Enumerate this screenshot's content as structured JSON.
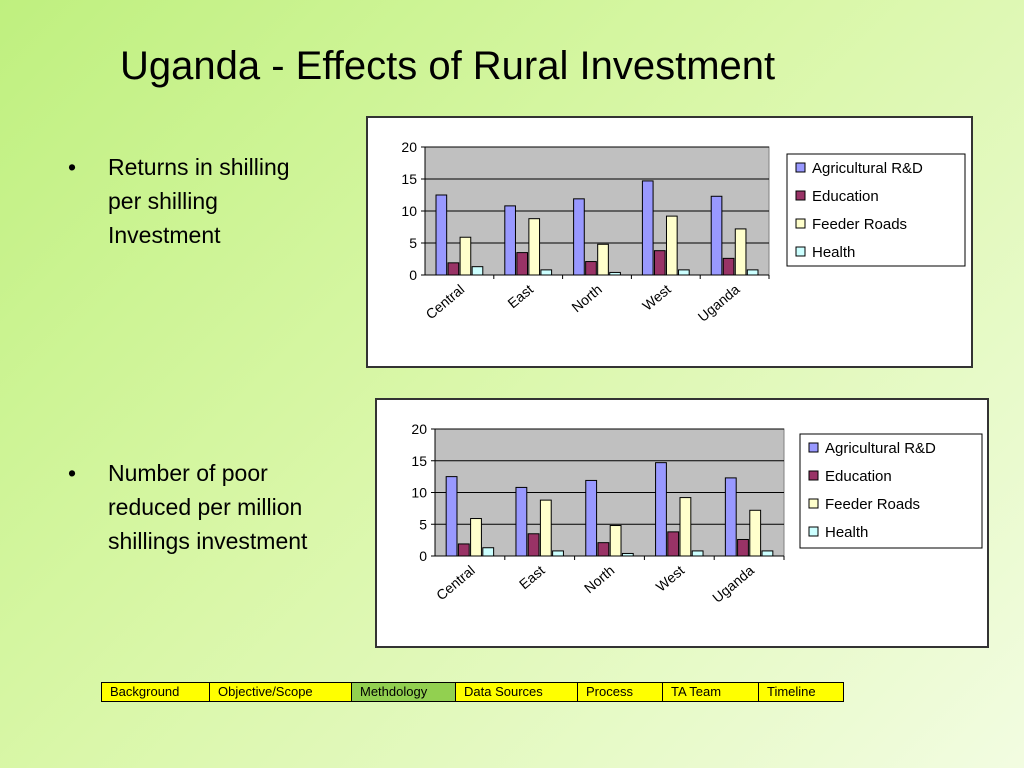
{
  "title": "Uganda - Effects of Rural Investment",
  "bullets": [
    {
      "marker": "•",
      "text": "Returns in shilling per shilling Investment"
    },
    {
      "marker": "•",
      "text": "Number of poor reduced per million shillings investment"
    }
  ],
  "chart_data": [
    {
      "type": "bar",
      "categories": [
        "Central",
        "East",
        "North",
        "West",
        "Uganda"
      ],
      "series": [
        {
          "name": "Agricultural R&D",
          "values": [
            12.5,
            10.8,
            11.9,
            14.7,
            12.3
          ]
        },
        {
          "name": "Education",
          "values": [
            1.9,
            3.5,
            2.1,
            3.8,
            2.6
          ]
        },
        {
          "name": "Feeder Roads",
          "values": [
            5.9,
            8.8,
            4.8,
            9.2,
            7.2
          ]
        },
        {
          "name": "Health",
          "values": [
            1.3,
            0.8,
            0.4,
            0.8,
            0.8
          ]
        }
      ],
      "ylim": [
        0,
        20
      ],
      "yticks": [
        0,
        5,
        10,
        15,
        20
      ],
      "grid": true,
      "legend": "right",
      "plot_background": "#c0c0c0",
      "colors": [
        "#9999ff",
        "#993366",
        "#ffffcc",
        "#ccffff"
      ]
    },
    {
      "type": "bar",
      "categories": [
        "Central",
        "East",
        "North",
        "West",
        "Uganda"
      ],
      "series": [
        {
          "name": "Agricultural R&D",
          "values": [
            12.5,
            10.8,
            11.9,
            14.7,
            12.3
          ]
        },
        {
          "name": "Education",
          "values": [
            1.9,
            3.5,
            2.1,
            3.8,
            2.6
          ]
        },
        {
          "name": "Feeder Roads",
          "values": [
            5.9,
            8.8,
            4.8,
            9.2,
            7.2
          ]
        },
        {
          "name": "Health",
          "values": [
            1.3,
            0.8,
            0.4,
            0.8,
            0.8
          ]
        }
      ],
      "ylim": [
        0,
        20
      ],
      "yticks": [
        0,
        5,
        10,
        15,
        20
      ],
      "grid": true,
      "legend": "right",
      "plot_background": "#c0c0c0",
      "colors": [
        "#9999ff",
        "#993366",
        "#ffffcc",
        "#ccffff"
      ]
    }
  ],
  "nav": {
    "active": "Methdology",
    "active_color": "#92d050",
    "bar_color": "#ffff00",
    "tabs": [
      "Background",
      "Objective/Scope",
      "Methdology",
      "Data Sources",
      "Process",
      "TA Team",
      "Timeline"
    ]
  }
}
